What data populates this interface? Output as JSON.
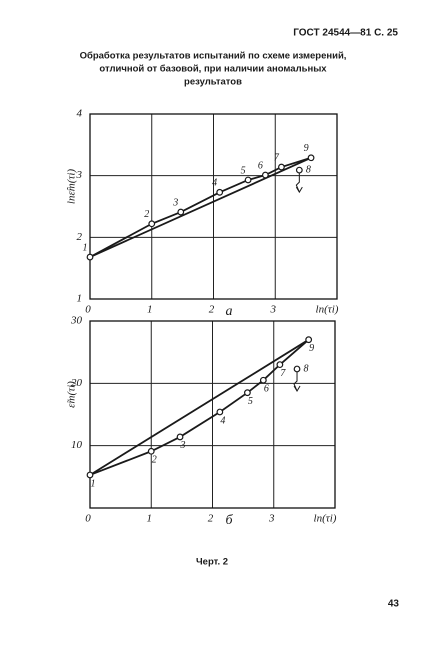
{
  "header": "ГОСТ 24544—81 С. 25",
  "title": [
    "Обработка результатов испытаний по схеме измерений,",
    "отличной от базовой, при наличии аномальных",
    "результатов"
  ],
  "chart_data": [
    {
      "type": "line",
      "caption": "а",
      "xlabel": "ln(τi)",
      "ylabel": "lnε̂m(τi)",
      "x": [
        0,
        1.0,
        1.47,
        2.1,
        2.56,
        2.84,
        3.1,
        3.39,
        3.58
      ],
      "series": [
        {
          "color": "#1a1a1a",
          "values": [
            1.68,
            2.22,
            2.41,
            2.73,
            2.93,
            3.01,
            3.14,
            3.09,
            3.29
          ],
          "point_labels": [
            "1",
            "2",
            "3",
            "4",
            "5",
            "6",
            "7",
            "8",
            "9"
          ],
          "censored": [
            false,
            false,
            false,
            false,
            false,
            false,
            false,
            true,
            false
          ]
        }
      ],
      "xlim": [
        0,
        4
      ],
      "ylim": [
        1,
        4
      ],
      "xticks": [
        0,
        1,
        2,
        3
      ],
      "yticks": [
        1,
        2,
        3,
        4
      ],
      "grid": true
    },
    {
      "type": "line",
      "caption": "б",
      "xlabel": "ln(τi)",
      "ylabel": "ε̃m(τi)",
      "x": [
        0,
        1.0,
        1.47,
        2.12,
        2.57,
        2.83,
        3.1,
        3.38,
        3.57
      ],
      "series": [
        {
          "color": "#1a1a1a",
          "values": [
            5.3,
            9.1,
            11.4,
            15.4,
            18.5,
            20.5,
            23.0,
            22.3,
            27.0
          ],
          "point_labels": [
            "1",
            "2",
            "3",
            "4",
            "5",
            "6",
            "7",
            "8",
            "9"
          ],
          "censored": [
            false,
            false,
            false,
            false,
            false,
            false,
            false,
            true,
            false
          ]
        }
      ],
      "xlim": [
        0,
        4
      ],
      "ylim": [
        0,
        30
      ],
      "xticks": [
        0,
        1,
        2,
        3
      ],
      "yticks": [
        10,
        20,
        30
      ],
      "grid": true
    }
  ],
  "figure_caption": "Черт. 2",
  "page_number": "43"
}
